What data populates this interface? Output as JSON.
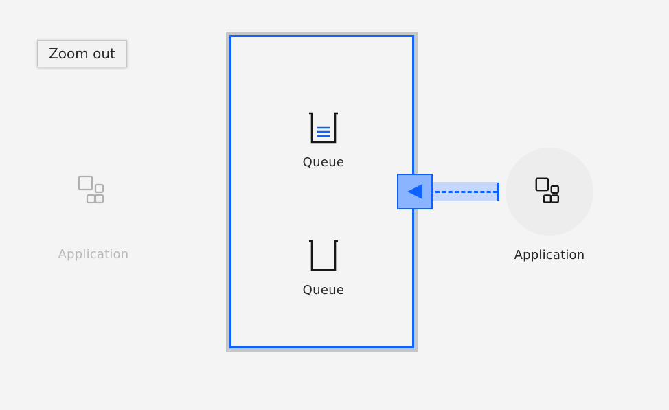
{
  "tooltip": {
    "text": "Zoom out"
  },
  "nodes": {
    "app_left": {
      "label": "Application",
      "icon": "application-icon",
      "state": "dimmed"
    },
    "app_right": {
      "label": "Application",
      "icon": "application-icon",
      "state": "active"
    },
    "queue_1": {
      "label": "Queue",
      "icon": "queue-with-messages-icon"
    },
    "queue_2": {
      "label": "Queue",
      "icon": "queue-empty-icon"
    }
  },
  "connection": {
    "from": "app_right",
    "to": "queue-manager",
    "style": "dashed-arrow"
  },
  "colors": {
    "accent": "#0f62fe",
    "highlight": "#c5d7fc",
    "port_fill": "#8ab4ff",
    "dimmed_text": "#b8b8b8",
    "background": "#f4f4f4"
  }
}
